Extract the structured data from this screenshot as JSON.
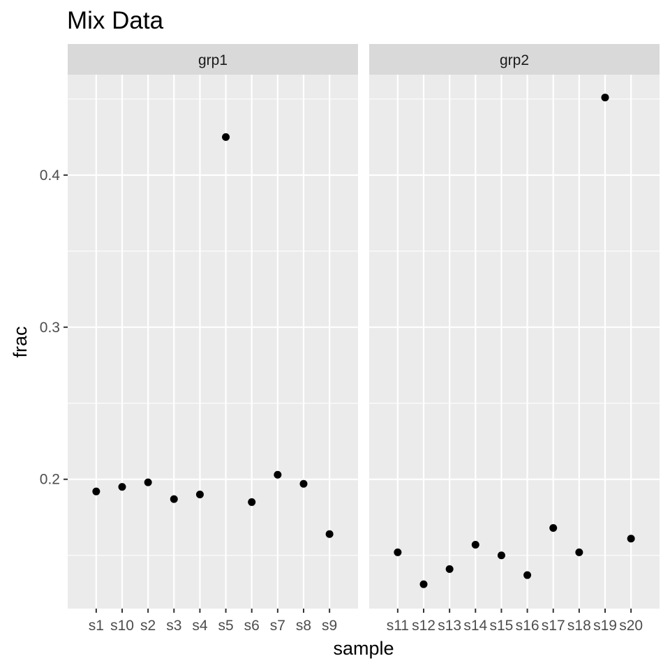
{
  "chart_data": {
    "type": "scatter",
    "title": "Mix Data",
    "xlabel": "sample",
    "ylabel": "frac",
    "ylim": [
      0.115,
      0.466
    ],
    "yticks": [
      0.2,
      0.3,
      0.4
    ],
    "ytick_labels": [
      "0.2",
      "0.3",
      "0.4"
    ],
    "grid": true,
    "legend": "none",
    "colors": {
      "panel": "#ebebeb",
      "strip": "#d9d9d9",
      "grid": "#ffffff",
      "point": "#000000"
    },
    "facets": [
      {
        "label": "grp1",
        "categories": [
          "s1",
          "s10",
          "s2",
          "s3",
          "s4",
          "s5",
          "s6",
          "s7",
          "s8",
          "s9"
        ],
        "values": [
          0.192,
          0.195,
          0.198,
          0.187,
          0.19,
          0.425,
          0.185,
          0.203,
          0.197,
          0.164
        ]
      },
      {
        "label": "grp2",
        "categories": [
          "s11",
          "s12",
          "s13",
          "s14",
          "s15",
          "s16",
          "s17",
          "s18",
          "s19",
          "s20"
        ],
        "values": [
          0.152,
          0.131,
          0.141,
          0.157,
          0.15,
          0.137,
          0.168,
          0.152,
          0.451,
          0.161
        ]
      }
    ]
  }
}
